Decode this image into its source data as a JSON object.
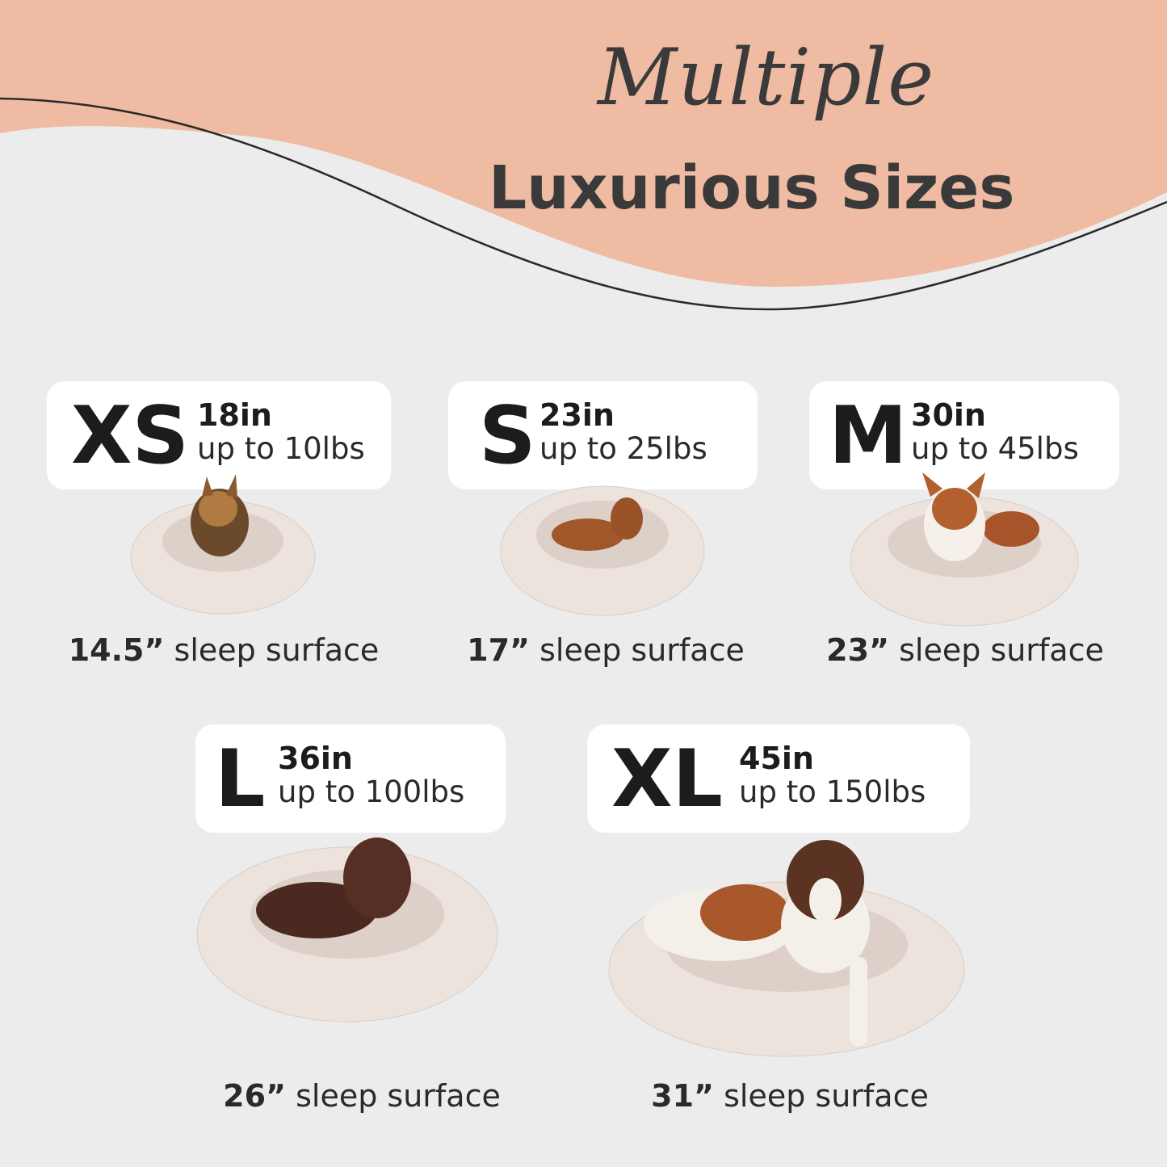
{
  "header": {
    "script_title": "Multiple",
    "main_title": "Luxurious Sizes"
  },
  "colors": {
    "peach": "#efbba2",
    "background": "#ececec",
    "text": "#2f2f2f",
    "card": "#ffffff",
    "bed": "#ece3dd"
  },
  "sizes": [
    {
      "label": "XS",
      "diameter": "18in",
      "weight": "up to 10lbs",
      "surface_value": "14.5”",
      "surface_text": " sleep surface",
      "dog": "yorkshire-terrier"
    },
    {
      "label": "S",
      "diameter": "23in",
      "weight": "up to 25lbs",
      "surface_value": "17”",
      "surface_text": " sleep surface",
      "dog": "dachshund"
    },
    {
      "label": "M",
      "diameter": "30in",
      "weight": "up to 45lbs",
      "surface_value": "23”",
      "surface_text": " sleep surface",
      "dog": "corgi"
    },
    {
      "label": "L",
      "diameter": "36in",
      "weight": "up to 100lbs",
      "surface_value": "26”",
      "surface_text": " sleep surface",
      "dog": "chocolate-labrador"
    },
    {
      "label": "XL",
      "diameter": "45in",
      "weight": "up to 150lbs",
      "surface_value": "31”",
      "surface_text": " sleep surface",
      "dog": "saint-bernard"
    }
  ]
}
